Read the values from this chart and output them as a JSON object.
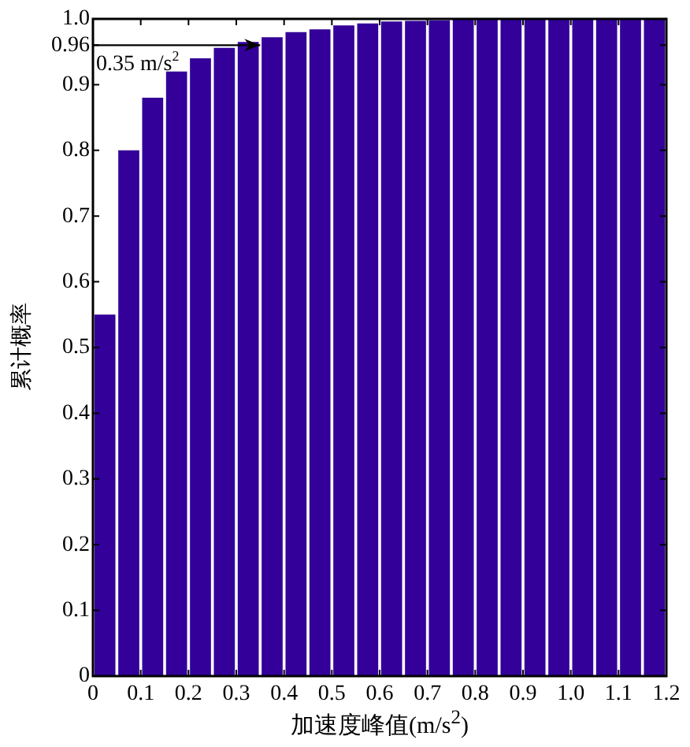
{
  "chart_data": {
    "type": "histogram",
    "xlabel": "加速度峰值(m/s$^{2}$)",
    "ylabel": "累计概率",
    "bins": [
      0,
      0.05,
      0.1,
      0.15,
      0.2,
      0.25,
      0.3,
      0.35,
      0.4,
      0.45,
      0.5,
      0.55,
      0.6,
      0.65,
      0.7,
      0.75,
      0.8,
      0.85,
      0.9,
      0.95,
      1.0,
      1.05,
      1.1,
      1.15,
      1.2
    ],
    "values": [
      0.55,
      0.8,
      0.88,
      0.92,
      0.94,
      0.956,
      0.965,
      0.972,
      0.98,
      0.984,
      0.99,
      0.993,
      0.996,
      0.997,
      0.998,
      1.0,
      1.0,
      1.0,
      1.0,
      1.0,
      1.0,
      1.0,
      1.0,
      1.0
    ],
    "color": "#330099",
    "xlim": [
      0,
      1.2
    ],
    "xticks": [
      0,
      0.1,
      0.2,
      0.3,
      0.4,
      0.5,
      0.6,
      0.7,
      0.8,
      0.9,
      {
        "value": 1,
        "label": "1.0"
      },
      1.1,
      1.2
    ],
    "ylim": [
      0,
      1
    ],
    "yticks": [
      0,
      0.1,
      0.2,
      0.3,
      0.4,
      0.5,
      0.6,
      0.7,
      0.8,
      0.9,
      0.96,
      {
        "value": 1,
        "label": "1.0"
      }
    ],
    "annotations": [
      {
        "text": "0.35 m/s$^{2}$",
        "x": 0.35,
        "y": 0.96
      }
    ],
    "legend": false
  }
}
